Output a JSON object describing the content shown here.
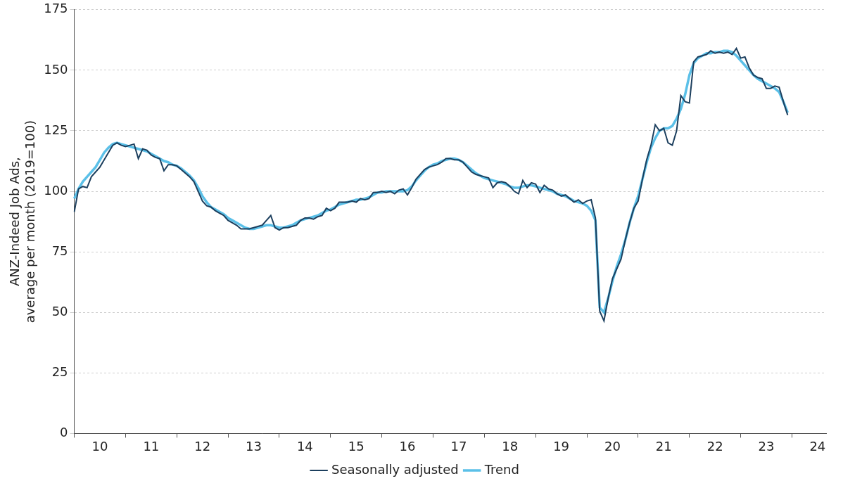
{
  "chart_data": {
    "type": "line",
    "ylabel": [
      "ANZ-Indeed Job Ads,",
      "average per month (2019=100)"
    ],
    "categories": [
      null,
      null,
      null,
      null,
      null,
      null,
      "10",
      null,
      null,
      null,
      null,
      null,
      null,
      null,
      null,
      null,
      null,
      null,
      "11",
      null,
      null,
      null,
      null,
      null,
      null,
      null,
      null,
      null,
      null,
      null,
      "12",
      null,
      null,
      null,
      null,
      null,
      null,
      null,
      null,
      null,
      null,
      null,
      "13",
      null,
      null,
      null,
      null,
      null,
      null,
      null,
      null,
      null,
      null,
      null,
      "14",
      null,
      null,
      null,
      null,
      null,
      null,
      null,
      null,
      null,
      null,
      null,
      "15",
      null,
      null,
      null,
      null,
      null,
      null,
      null,
      null,
      null,
      null,
      null,
      "16",
      null,
      null,
      null,
      null,
      null,
      null,
      null,
      null,
      null,
      null,
      null,
      "17",
      null,
      null,
      null,
      null,
      null,
      null,
      null,
      null,
      null,
      null,
      null,
      "18",
      null,
      null,
      null,
      null,
      null,
      null,
      null,
      null,
      null,
      null,
      null,
      "19",
      null,
      null,
      null,
      null,
      null,
      null,
      null,
      null,
      null,
      null,
      null,
      "20",
      null,
      null,
      null,
      null,
      null,
      null,
      null,
      null,
      null,
      null,
      null,
      "21",
      null,
      null,
      null,
      null,
      null,
      null,
      null,
      null,
      null,
      null,
      null,
      "22",
      null,
      null,
      null,
      null,
      null,
      null,
      null,
      null,
      null,
      null,
      null,
      "23",
      null,
      null,
      null,
      null,
      null,
      null,
      null,
      null,
      null,
      null,
      null,
      "24",
      null,
      null
    ],
    "series": [
      {
        "name": "Trend",
        "color": "#5bc0e8",
        "values": [
          97,
          101,
          104,
          106,
          108,
          110,
          113,
          116,
          118,
          119.5,
          120,
          119.5,
          119,
          118.5,
          118,
          117.5,
          117,
          116.5,
          115.5,
          114.5,
          113.5,
          112.5,
          112,
          111,
          110.5,
          109.5,
          108,
          106.5,
          104.5,
          101.5,
          98,
          95.5,
          93.5,
          92.5,
          91.5,
          90.5,
          89,
          88,
          87,
          86,
          85,
          84.5,
          84.5,
          85,
          85.5,
          86,
          86,
          85.5,
          85,
          85,
          85.5,
          86,
          87,
          88,
          88.5,
          89,
          89.5,
          90,
          91,
          92,
          92.5,
          93.5,
          94.5,
          95,
          95.5,
          96,
          96.5,
          96.5,
          97,
          97.5,
          98.5,
          99.5,
          99.5,
          100,
          100,
          100,
          100,
          100,
          100.5,
          102,
          104.5,
          106.5,
          108.5,
          110,
          111,
          111.5,
          112.5,
          113,
          113.5,
          113.5,
          113,
          112,
          110.5,
          109,
          107.5,
          106.5,
          105.5,
          105,
          104.5,
          104,
          103.5,
          103,
          102,
          101.5,
          101.5,
          102,
          102.5,
          102.5,
          102,
          101.5,
          101,
          100.5,
          100,
          99,
          98.5,
          98,
          97,
          96,
          95.5,
          95,
          94,
          92,
          88,
          52,
          50,
          56,
          63,
          69,
          74,
          80,
          87,
          93,
          98,
          105,
          112,
          118,
          122,
          125,
          126,
          126,
          127,
          130,
          134,
          140,
          148,
          153,
          155,
          156,
          157,
          157,
          157.5,
          157.5,
          158,
          158,
          157.5,
          156,
          154,
          152,
          150,
          148,
          146.5,
          145.5,
          144.5,
          143.5,
          142.5,
          141,
          137,
          132.5,
          null,
          null,
          null,
          null,
          null,
          null,
          null,
          null,
          null
        ]
      },
      {
        "name": "Seasonally adjusted",
        "color": "#1c3f5e",
        "values": [
          91.5,
          101,
          102,
          101.5,
          106,
          108,
          110,
          113,
          116,
          119,
          120,
          119,
          118.5,
          119,
          119.5,
          113.5,
          117.5,
          117,
          115,
          114,
          113.5,
          108.5,
          111,
          111,
          110.5,
          109,
          107.5,
          106,
          104,
          100,
          96,
          94,
          93.5,
          92,
          91,
          90,
          88,
          87,
          86,
          84.5,
          84.5,
          84.5,
          85,
          85.5,
          86,
          88,
          90,
          85,
          84,
          85,
          85,
          85.5,
          86,
          88,
          89,
          89,
          88.5,
          89.5,
          90,
          93,
          92,
          93,
          95.5,
          95.5,
          95.5,
          96,
          95.5,
          97,
          96.5,
          97,
          99.5,
          99.5,
          100,
          99.5,
          100,
          99,
          100.5,
          101,
          98.5,
          101.5,
          105,
          107,
          109,
          110,
          110.5,
          111,
          112,
          113.5,
          113.5,
          113,
          113,
          112,
          110,
          108,
          107,
          106.5,
          106,
          105.5,
          101.5,
          103.5,
          104,
          103.5,
          102,
          100,
          99,
          104.5,
          101.5,
          103.5,
          103,
          99.5,
          102.5,
          101,
          100.5,
          99,
          98,
          98.5,
          97,
          95.5,
          96.5,
          95,
          96,
          96.5,
          89,
          50.5,
          46.5,
          56,
          64,
          68,
          72,
          80,
          87,
          93,
          96,
          105,
          113,
          119,
          127.5,
          125,
          126,
          120,
          119,
          125,
          139.5,
          137,
          136.5,
          153.5,
          155.5,
          156,
          156.5,
          158,
          157,
          157.5,
          157,
          157.5,
          156.5,
          159,
          155,
          155.5,
          151,
          148,
          147,
          146.5,
          142.5,
          142.5,
          143.5,
          143,
          137,
          131.5,
          null,
          null,
          null,
          null,
          null,
          null,
          null,
          null,
          null
        ]
      }
    ],
    "ylim": [
      0,
      175
    ],
    "yticks": [
      0,
      25,
      50,
      75,
      100,
      125,
      150,
      175
    ],
    "grid": true,
    "legend": "bottom"
  }
}
